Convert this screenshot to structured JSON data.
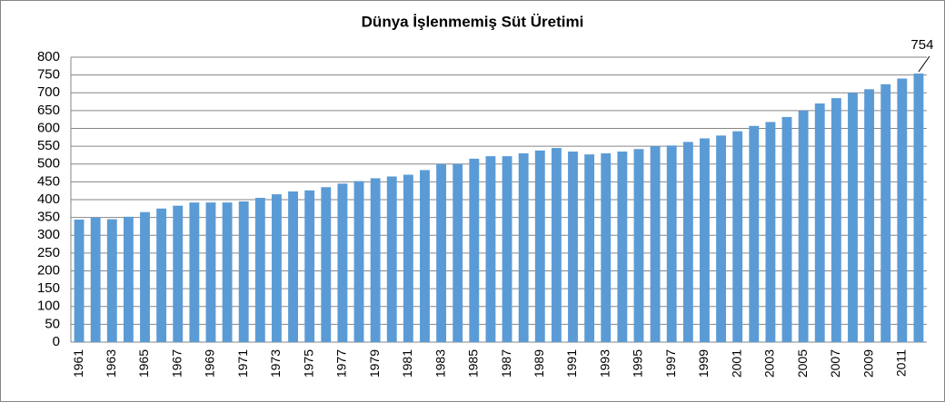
{
  "chart_data": {
    "type": "bar",
    "title": "Dünya İşlenmemiş Süt Üretimi",
    "categories": [
      "1961",
      null,
      "1963",
      null,
      "1965",
      null,
      "1967",
      null,
      "1969",
      null,
      "1971",
      null,
      "1973",
      null,
      "1975",
      null,
      "1977",
      null,
      "1979",
      null,
      "1981",
      null,
      "1983",
      null,
      "1985",
      null,
      "1987",
      null,
      "1989",
      null,
      "1991",
      null,
      "1993",
      null,
      "1995",
      null,
      "1997",
      null,
      "1999",
      null,
      "2001",
      null,
      "2003",
      null,
      "2005",
      null,
      "2007",
      null,
      "2009",
      null,
      "2011",
      null
    ],
    "values": [
      344,
      350,
      345,
      352,
      365,
      375,
      383,
      392,
      392,
      392,
      395,
      405,
      415,
      423,
      426,
      435,
      445,
      452,
      460,
      465,
      470,
      483,
      500,
      500,
      515,
      522,
      522,
      530,
      538,
      545,
      535,
      527,
      530,
      535,
      542,
      550,
      552,
      562,
      572,
      580,
      592,
      607,
      618,
      632,
      650,
      670,
      685,
      700,
      710,
      724,
      740,
      754
    ],
    "color": "#5b9bd5",
    "ylim": [
      0,
      800
    ],
    "yticks": [
      0,
      50,
      100,
      150,
      200,
      250,
      300,
      350,
      400,
      450,
      500,
      550,
      600,
      650,
      700,
      750,
      800
    ],
    "grid": true
  }
}
